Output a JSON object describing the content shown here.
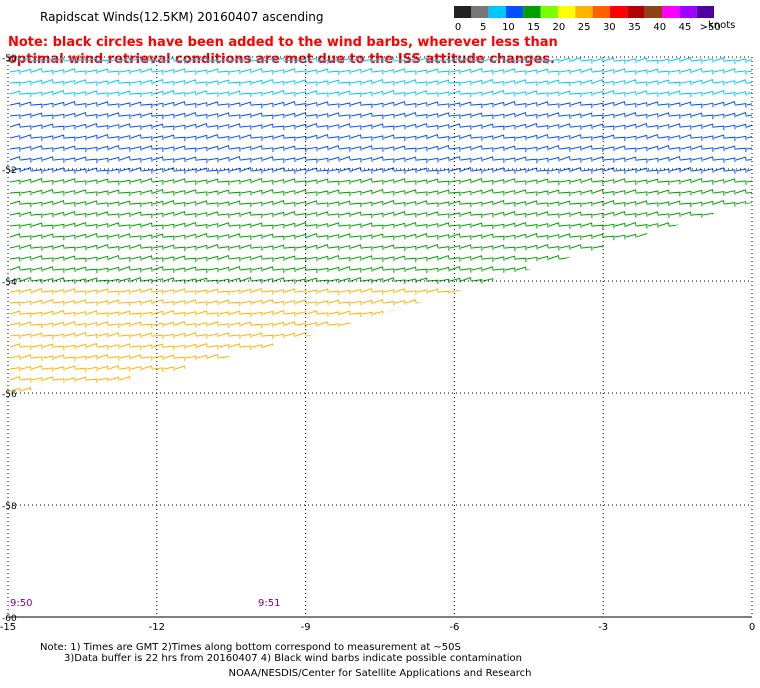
{
  "title": "Rapidscat Winds(12.5KM) 20160407 ascending",
  "note": "Note: black circles have been added to the wind barbs, wherever less than optimal wind retrieval conditions are met due to the ISS attitude changes.",
  "footer": {
    "line1": "Note: 1) Times are GMT 2)Times along bottom correspond to measurement at ~50S",
    "line2": "3)Data buffer is 22 hrs from 20160407 4) Black wind barbs indicate possible contamination",
    "credit": "NOAA/NESDIS/Center for Satellite Applications and Research"
  },
  "legend": {
    "unit": "knots",
    "labels": [
      "0",
      "5",
      "10",
      "15",
      "20",
      "25",
      "30",
      "35",
      "40",
      "45",
      ">50"
    ],
    "colors": [
      "#222222",
      "#777777",
      "#00c8ff",
      "#0050ff",
      "#00a000",
      "#7cff00",
      "#ffff00",
      "#ffb400",
      "#ff6000",
      "#ff0000",
      "#b00000",
      "#8b4513",
      "#ff00ff",
      "#a000ff",
      "#5000a0"
    ]
  },
  "chart_data": {
    "type": "scatter",
    "description_type": "wind barbs",
    "xlim": [
      -15,
      0
    ],
    "ylim": [
      -60,
      -50
    ],
    "x_ticks": [
      "-15",
      "-12",
      "-9",
      "-6",
      "-3",
      "0"
    ],
    "y_ticks": [
      "-50",
      "-52",
      "-54",
      "-56",
      "-58",
      "-60"
    ],
    "time_labels": [
      {
        "lon": -15,
        "text": "9:50"
      },
      {
        "lon": -10,
        "text": "9:51"
      }
    ],
    "grid": true,
    "swath_lower_edge": [
      [
        -15,
        -56.0
      ],
      [
        -12,
        -55.7
      ],
      [
        -9,
        -55.0
      ],
      [
        -6,
        -54.2
      ],
      [
        -3,
        -53.4
      ],
      [
        0,
        -52.6
      ]
    ],
    "speed_bands_by_lat": [
      {
        "lat_range": [
          -50.0,
          -50.8
        ],
        "speed_kt": 12,
        "color": "#00c8ff"
      },
      {
        "lat_range": [
          -50.8,
          -52.2
        ],
        "speed_kt": 15,
        "color": "#0050ff"
      },
      {
        "lat_range": [
          -52.2,
          -54.0
        ],
        "speed_kt": 18,
        "color": "#00a000"
      },
      {
        "lat_range": [
          -54.0,
          -56.0
        ],
        "speed_kt": 25,
        "color": "#ffb400"
      }
    ]
  }
}
